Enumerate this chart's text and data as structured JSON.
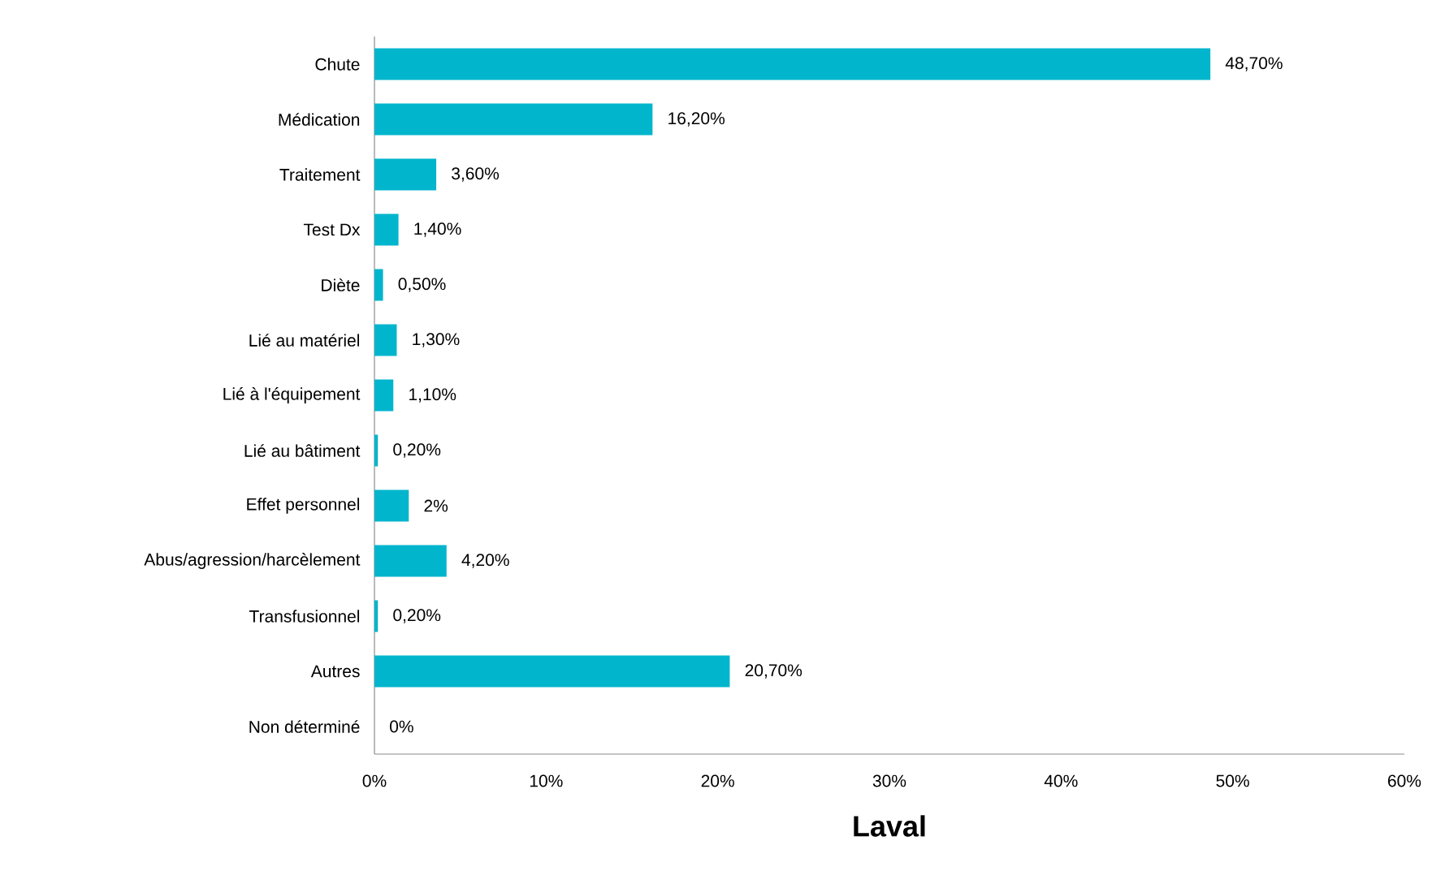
{
  "chart_data": {
    "type": "bar",
    "orientation": "horizontal",
    "xlabel": "Laval",
    "categories": [
      "Chute",
      "Médication",
      "Traitement",
      "Test Dx",
      "Diète",
      "Lié au matériel",
      "Lié à l'équipement",
      "Lié au bâtiment",
      "Effet personnel",
      "Abus/agression/harcèlement",
      "Transfusionnel",
      "Autres",
      "Non déterminé"
    ],
    "values": [
      48.7,
      16.2,
      3.6,
      1.4,
      0.5,
      1.3,
      1.1,
      0.2,
      2,
      4.2,
      0.2,
      20.7,
      0
    ],
    "value_labels": [
      "48,70%",
      "16,20%",
      "3,60%",
      "1,40%",
      "0,50%",
      "1,30%",
      "1,10%",
      "0,20%",
      "2%",
      "4,20%",
      "0,20%",
      "20,70%",
      "0%"
    ],
    "color": "#00b5cc",
    "xlim": [
      0,
      60
    ],
    "xticks": [
      {
        "value": 0,
        "label": "0%"
      },
      {
        "value": 10,
        "label": "10%"
      },
      {
        "value": 20,
        "label": "20%"
      },
      {
        "value": 30,
        "label": "30%"
      },
      {
        "value": 40,
        "label": "40%"
      },
      {
        "value": 50,
        "label": "50%"
      },
      {
        "value": 60,
        "label": "60%"
      }
    ],
    "grid": false
  }
}
